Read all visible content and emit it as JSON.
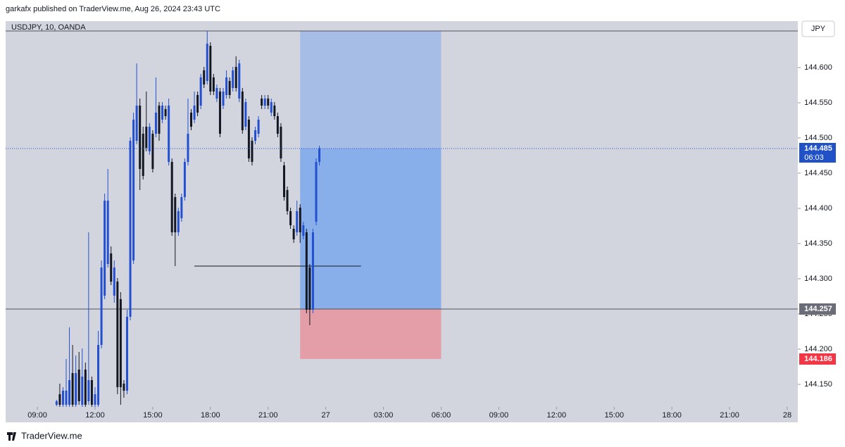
{
  "header": {
    "text": "garkafx published on TraderView.me, Aug 26, 2024 23:43 UTC"
  },
  "footer": {
    "text": "TraderView.me"
  },
  "chart_data": {
    "type": "candlestick",
    "title": "USDJPY, 10, OANDA",
    "currency": "JPY",
    "up_color": "#2350d0",
    "down_color": "#131722",
    "xlim": [
      441,
      2913
    ],
    "ylim": [
      144.118,
      144.652
    ],
    "xticks": [
      {
        "value": 540,
        "label": "09:00"
      },
      {
        "value": 720,
        "label": "12:00"
      },
      {
        "value": 900,
        "label": "15:00"
      },
      {
        "value": 1080,
        "label": "18:00"
      },
      {
        "value": 1260,
        "label": "21:00"
      },
      {
        "value": 1440,
        "label": "27"
      },
      {
        "value": 1620,
        "label": "03:00"
      },
      {
        "value": 1800,
        "label": "06:00"
      },
      {
        "value": 1980,
        "label": "09:00"
      },
      {
        "value": 2160,
        "label": "12:00"
      },
      {
        "value": 2340,
        "label": "15:00"
      },
      {
        "value": 2520,
        "label": "18:00"
      },
      {
        "value": 2700,
        "label": "21:00"
      },
      {
        "value": 2880,
        "label": "28"
      }
    ],
    "yticks": [
      {
        "value": 144.15,
        "label": "144.150"
      },
      {
        "value": 144.2,
        "label": "144.200"
      },
      {
        "value": 144.25,
        "label": "144.250"
      },
      {
        "value": 144.3,
        "label": "144.300"
      },
      {
        "value": 144.35,
        "label": "144.350"
      },
      {
        "value": 144.4,
        "label": "144.400"
      },
      {
        "value": 144.45,
        "label": "144.450"
      },
      {
        "value": 144.5,
        "label": "144.500"
      },
      {
        "value": 144.55,
        "label": "144.550"
      },
      {
        "value": 144.6,
        "label": "144.600"
      }
    ],
    "x": [
      600,
      610,
      620,
      630,
      640,
      650,
      660,
      670,
      680,
      690,
      700,
      710,
      720,
      730,
      740,
      750,
      760,
      770,
      780,
      790,
      800,
      810,
      820,
      830,
      840,
      850,
      860,
      870,
      880,
      890,
      900,
      910,
      920,
      930,
      940,
      950,
      960,
      970,
      980,
      990,
      1000,
      1010,
      1020,
      1030,
      1040,
      1050,
      1060,
      1070,
      1080,
      1090,
      1100,
      1110,
      1120,
      1130,
      1140,
      1150,
      1160,
      1170,
      1180,
      1190,
      1200,
      1210,
      1220,
      1230,
      1240,
      1250,
      1260,
      1270,
      1280,
      1290,
      1300,
      1310,
      1320,
      1330,
      1340,
      1350,
      1360,
      1370,
      1380,
      1390,
      1400,
      1410,
      1420
    ],
    "open": [
      144.121,
      144.136,
      144.121,
      144.121,
      144.121,
      144.166,
      144.121,
      144.171,
      144.121,
      144.171,
      144.126,
      144.156,
      144.121,
      144.121,
      144.206,
      144.276,
      144.321,
      144.336,
      144.276,
      144.296,
      144.271,
      144.151,
      144.141,
      144.246,
      144.326,
      144.496,
      144.546,
      144.506,
      144.516,
      144.481,
      144.506,
      144.506,
      144.546,
      144.526,
      144.541,
      144.466,
      144.466,
      144.416,
      144.366,
      144.386,
      144.416,
      144.466,
      144.536,
      144.526,
      144.561,
      144.546,
      144.596,
      144.581,
      144.631,
      144.586,
      144.556,
      144.566,
      144.546,
      144.561,
      144.581,
      144.571,
      144.601,
      144.556,
      144.566,
      144.516,
      144.526,
      144.496,
      144.496,
      144.506,
      144.556,
      144.546,
      144.556,
      144.536,
      144.546,
      144.531,
      144.516,
      144.461,
      144.426,
      144.396,
      144.371,
      144.366,
      144.401,
      144.361,
      144.366,
      144.316,
      144.256,
      144.381,
      144.466
    ],
    "high": [
      144.128,
      144.151,
      144.146,
      144.186,
      144.231,
      144.206,
      144.191,
      144.196,
      144.201,
      144.181,
      144.366,
      144.161,
      144.146,
      144.226,
      144.326,
      144.421,
      144.456,
      144.346,
      144.326,
      144.301,
      144.281,
      144.156,
      144.256,
      144.501,
      144.536,
      144.606,
      144.556,
      144.516,
      144.566,
      144.521,
      144.511,
      144.586,
      144.551,
      144.551,
      144.546,
      144.556,
      144.471,
      144.421,
      144.401,
      144.421,
      144.471,
      144.556,
      144.541,
      144.566,
      144.566,
      144.591,
      144.601,
      144.652,
      144.636,
      144.591,
      144.576,
      144.571,
      144.571,
      144.596,
      144.586,
      144.601,
      144.616,
      144.611,
      144.571,
      144.556,
      144.531,
      144.501,
      144.516,
      144.531,
      144.561,
      144.561,
      144.561,
      144.556,
      144.551,
      144.536,
      144.521,
      144.466,
      144.431,
      144.401,
      144.376,
      144.411,
      144.406,
      144.381,
      144.371,
      144.321,
      144.371,
      144.471,
      144.489
    ],
    "low": [
      144.119,
      144.118,
      144.118,
      144.118,
      144.118,
      144.118,
      144.118,
      144.121,
      144.118,
      144.118,
      144.121,
      144.118,
      144.118,
      144.118,
      144.201,
      144.271,
      144.316,
      144.291,
      144.266,
      144.136,
      144.121,
      144.131,
      144.136,
      144.241,
      144.321,
      144.491,
      144.426,
      144.441,
      144.481,
      144.476,
      144.451,
      144.501,
      144.496,
      144.521,
      144.526,
      144.461,
      144.361,
      144.318,
      144.361,
      144.381,
      144.411,
      144.461,
      144.511,
      144.521,
      144.531,
      144.541,
      144.571,
      144.576,
      144.561,
      144.561,
      144.551,
      144.501,
      144.541,
      144.556,
      144.556,
      144.566,
      144.566,
      144.551,
      144.506,
      144.511,
      144.466,
      144.461,
      144.491,
      144.501,
      144.541,
      144.541,
      144.541,
      144.531,
      144.526,
      144.501,
      144.466,
      144.411,
      144.391,
      144.371,
      144.351,
      144.361,
      144.351,
      144.356,
      144.251,
      144.234,
      144.251,
      144.376,
      144.461
    ],
    "close": [
      144.126,
      144.121,
      144.141,
      144.141,
      144.156,
      144.121,
      144.166,
      144.126,
      144.161,
      144.121,
      144.156,
      144.121,
      144.136,
      144.206,
      144.316,
      144.411,
      144.411,
      144.296,
      144.316,
      144.146,
      144.146,
      144.141,
      144.246,
      144.496,
      144.526,
      144.546,
      144.456,
      144.446,
      144.486,
      144.516,
      144.456,
      144.536,
      144.506,
      144.546,
      144.531,
      144.546,
      144.366,
      144.366,
      144.396,
      144.416,
      144.466,
      144.506,
      144.516,
      144.546,
      144.536,
      144.586,
      144.576,
      144.634,
      144.566,
      144.566,
      144.571,
      144.506,
      144.566,
      144.586,
      144.561,
      144.596,
      144.571,
      144.606,
      144.511,
      144.551,
      144.471,
      144.466,
      144.511,
      144.526,
      144.546,
      144.556,
      144.546,
      144.551,
      144.531,
      144.506,
      144.471,
      144.416,
      144.396,
      144.376,
      144.356,
      144.396,
      144.366,
      144.376,
      144.256,
      144.256,
      144.366,
      144.466,
      144.485
    ],
    "horizontal_lines": [
      {
        "value": 144.652,
        "color": "#50535e"
      },
      {
        "value": 144.257,
        "color": "#50535e"
      }
    ],
    "drawings": [
      {
        "y": 144.318,
        "x": [
          1030,
          1550
        ],
        "color": "#131722"
      }
    ],
    "position": {
      "entry": 144.257,
      "stop": 144.186,
      "target": 144.652,
      "x": [
        1360,
        1800
      ],
      "profit_color": "#6fa2ee",
      "loss_color": "#e8909a"
    },
    "price_labels": [
      {
        "value": 144.485,
        "countdown": "06:03",
        "color": "#2151c6",
        "line": "dotted"
      },
      {
        "value": 144.257,
        "color": "#6a6d78"
      },
      {
        "value": 144.186,
        "color": "#f23645"
      }
    ]
  }
}
